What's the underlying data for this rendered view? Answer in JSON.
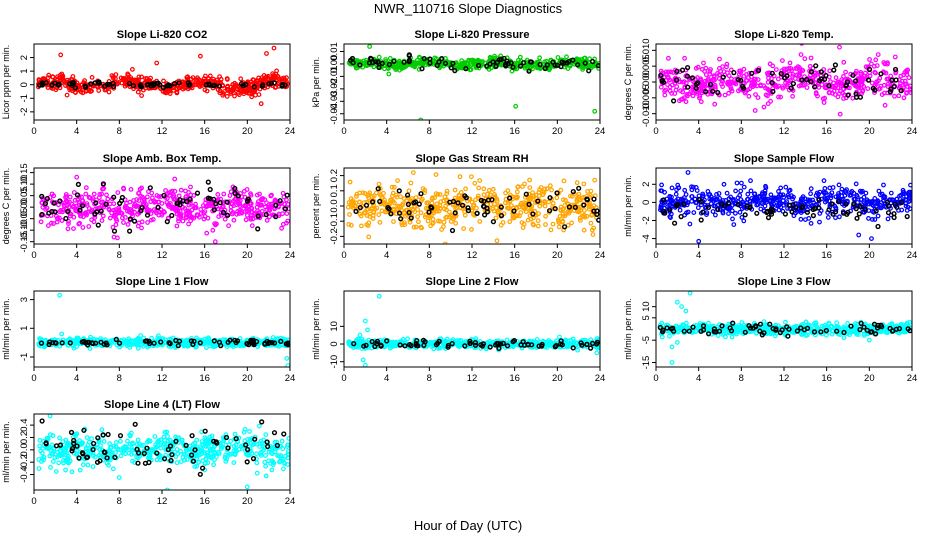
{
  "figure": {
    "title": "NWR_110716  Slope Diagnostics",
    "xlabel": "Hour of Day (UTC)"
  },
  "chart_data": [
    {
      "type": "scatter",
      "title": "Slope Li-820 CO2",
      "ylabel": "Licor ppm per min.",
      "color": "#ff0000",
      "xlim": [
        0,
        24
      ],
      "xticks": [
        0,
        4,
        8,
        12,
        16,
        20,
        24
      ],
      "ylim": [
        -2.6,
        3.0
      ],
      "yticks": [
        -2,
        -1,
        0,
        1,
        2
      ],
      "yticklabels": [
        "-2",
        "-1",
        "0",
        "1",
        "2"
      ],
      "main_sd": 0.3,
      "main_amp": 0.25,
      "black_sd": 0.1,
      "outliers": [
        [
          2.5,
          2.2
        ],
        [
          11.5,
          1.6
        ],
        [
          15.6,
          2.1
        ],
        [
          21.8,
          2.3
        ],
        [
          22.5,
          2.7
        ],
        [
          21.3,
          -1.4
        ],
        [
          13.4,
          -0.6
        ],
        [
          5.3,
          -0.5
        ]
      ]
    },
    {
      "type": "scatter",
      "title": "Slope Li-820 Pressure",
      "ylabel": "kPa per min.",
      "color": "#00cc00",
      "xlim": [
        0,
        24
      ],
      "xticks": [
        0,
        4,
        8,
        12,
        16,
        20,
        24
      ],
      "ylim": [
        -0.045,
        0.016
      ],
      "yticks": [
        -0.04,
        -0.03,
        -0.02,
        -0.01,
        0.0,
        0.01
      ],
      "yticklabels": [
        "-0.04",
        "-0.03",
        "-0.02",
        "-0.01",
        "0.00",
        "0.01"
      ],
      "main_sd": 0.002,
      "main_amp": 0.001,
      "black_sd": 0.003,
      "outliers": [
        [
          2.4,
          0.014
        ],
        [
          7.2,
          -0.045
        ],
        [
          16.1,
          -0.034
        ],
        [
          23.5,
          -0.038
        ],
        [
          3.6,
          0.0
        ],
        [
          5.2,
          -0.005
        ]
      ]
    },
    {
      "type": "scatter",
      "title": "Slope Li-820 Temp.",
      "ylabel": "degrees C per min.",
      "color": "#ff00ff",
      "xlim": [
        0,
        24
      ],
      "xticks": [
        0,
        4,
        8,
        12,
        16,
        20,
        24
      ],
      "ylim": [
        -0.012,
        0.012
      ],
      "yticks": [
        -0.01,
        -0.005,
        0.0,
        0.005,
        0.01
      ],
      "yticklabels": [
        "-0.010",
        "-0.005",
        "0.000",
        "0.005",
        "0.010"
      ],
      "main_sd": 0.003,
      "main_amp": 0.0012,
      "black_sd": 0.0025,
      "outliers": [
        [
          17.2,
          0.011
        ],
        [
          5.5,
          -0.007
        ],
        [
          9.3,
          -0.009
        ]
      ]
    },
    {
      "type": "scatter",
      "title": "Slope Amb. Box Temp.",
      "ylabel": "degrees C per min.",
      "color": "#ff00ff",
      "xlim": [
        0,
        24
      ],
      "xticks": [
        0,
        4,
        8,
        12,
        16,
        20,
        24
      ],
      "ylim": [
        -0.16,
        0.17
      ],
      "yticks": [
        -0.15,
        -0.1,
        -0.05,
        0.0,
        0.05,
        0.1,
        0.15
      ],
      "yticklabels": [
        "-0.15",
        "-0.10",
        "-0.05",
        "0.00",
        "0.05",
        "0.10",
        "0.15"
      ],
      "main_sd": 0.04,
      "main_amp": 0.008,
      "black_sd": 0.045,
      "outliers": [
        [
          4.0,
          0.13
        ],
        [
          7.5,
          -0.13
        ],
        [
          17.0,
          -0.15
        ]
      ]
    },
    {
      "type": "scatter",
      "title": "Slope Gas Stream RH",
      "ylabel": "percent per min.",
      "color": "#ffa500",
      "xlim": [
        0,
        24
      ],
      "xticks": [
        0,
        4,
        8,
        12,
        16,
        20,
        24
      ],
      "ylim": [
        -0.25,
        0.25
      ],
      "yticks": [
        -0.2,
        -0.1,
        0.0,
        0.1,
        0.2
      ],
      "yticklabels": [
        "-0.2",
        "-0.1",
        "0.0",
        "0.1",
        "0.2"
      ],
      "main_sd": 0.07,
      "main_amp": 0.01,
      "black_sd": 0.07,
      "outliers": [
        [
          6.5,
          0.22
        ],
        [
          9.5,
          -0.25
        ],
        [
          23.5,
          0.17
        ]
      ]
    },
    {
      "type": "scatter",
      "title": "Slope Sample Flow",
      "ylabel": "ml/min per min.",
      "color": "#0000ff",
      "xlim": [
        0,
        24
      ],
      "xticks": [
        0,
        4,
        8,
        12,
        16,
        20,
        24
      ],
      "ylim": [
        -4.6,
        3.8
      ],
      "yticks": [
        -4,
        -2,
        0,
        2
      ],
      "yticklabels": [
        "-4",
        "-2",
        "0",
        "2"
      ],
      "main_sd": 0.8,
      "main_amp": 0.3,
      "black_sd": 0.6,
      "black_off": -0.8,
      "outliers": [
        [
          3.0,
          3.3
        ],
        [
          4.0,
          -4.3
        ],
        [
          19.0,
          -3.6
        ],
        [
          20.2,
          -4.0
        ],
        [
          1.5,
          1.6
        ]
      ]
    },
    {
      "type": "scatter",
      "title": "Slope Line 1 Flow",
      "ylabel": "ml/min per min.",
      "color": "#00ffff",
      "xlim": [
        0,
        24
      ],
      "xticks": [
        0,
        4,
        8,
        12,
        16,
        20,
        24
      ],
      "ylim": [
        -1.7,
        3.6
      ],
      "yticks": [
        -1,
        1,
        3
      ],
      "yticklabels": [
        "-1",
        "1",
        "3"
      ],
      "main_sd": 0.15,
      "main_amp": 0.0,
      "black_sd": 0.1,
      "outliers": [
        [
          2.4,
          3.3
        ],
        [
          2.6,
          0.6
        ],
        [
          23.7,
          -1.1
        ],
        [
          23.8,
          -1.6
        ],
        [
          10.0,
          0.5
        ]
      ]
    },
    {
      "type": "scatter",
      "title": "Slope Line 2 Flow",
      "ylabel": "ml/min per min.",
      "color": "#00ffff",
      "xlim": [
        0,
        24
      ],
      "xticks": [
        0,
        4,
        8,
        12,
        16,
        20,
        24
      ],
      "ylim": [
        -13,
        30
      ],
      "yticks": [
        -10,
        0,
        10
      ],
      "yticklabels": [
        "-10",
        "0",
        "10"
      ],
      "main_sd": 1.2,
      "main_amp": 0.0,
      "black_sd": 1.0,
      "outliers": [
        [
          3.3,
          27
        ],
        [
          2.0,
          13
        ],
        [
          2.2,
          8
        ],
        [
          1.5,
          5
        ],
        [
          1.8,
          -9
        ],
        [
          2.0,
          -12
        ],
        [
          23.7,
          -5
        ],
        [
          20.2,
          4
        ]
      ]
    },
    {
      "type": "scatter",
      "title": "Slope Line 3 Flow",
      "ylabel": "ml/min per min.",
      "color": "#00ffff",
      "xlim": [
        0,
        24
      ],
      "xticks": [
        0,
        4,
        8,
        12,
        16,
        20,
        24
      ],
      "ylim": [
        -17,
        17
      ],
      "yticks": [
        -15,
        -5,
        5,
        10
      ],
      "yticklabels": [
        "-15",
        "-5",
        "5",
        "10"
      ],
      "main_sd": 1.3,
      "main_amp": 0.0,
      "black_sd": 1.2,
      "outliers": [
        [
          3.2,
          16
        ],
        [
          2.0,
          12
        ],
        [
          2.4,
          10
        ],
        [
          2.8,
          8
        ],
        [
          1.5,
          -8
        ],
        [
          2.0,
          -6
        ],
        [
          1.5,
          -15
        ],
        [
          20.0,
          -5
        ]
      ]
    },
    {
      "type": "scatter",
      "title": "Slope Line 4 (LT) Flow",
      "ylabel": "ml/min per min.",
      "color": "#00ffff",
      "xlim": [
        0,
        24
      ],
      "xticks": [
        0,
        4,
        8,
        12,
        16,
        20,
        24
      ],
      "ylim": [
        -0.65,
        0.58
      ],
      "yticks": [
        -0.4,
        -0.2,
        0.0,
        0.2,
        0.4
      ],
      "yticklabels": [
        "-0.4",
        "-0.2",
        "0.0",
        "0.2",
        "0.4"
      ],
      "main_sd": 0.13,
      "main_amp": 0.02,
      "black_sd": 0.15,
      "outliers": [
        [
          1.5,
          0.55
        ],
        [
          12.5,
          -0.65
        ],
        [
          20.0,
          -0.6
        ],
        [
          8.0,
          -0.45
        ]
      ]
    }
  ]
}
